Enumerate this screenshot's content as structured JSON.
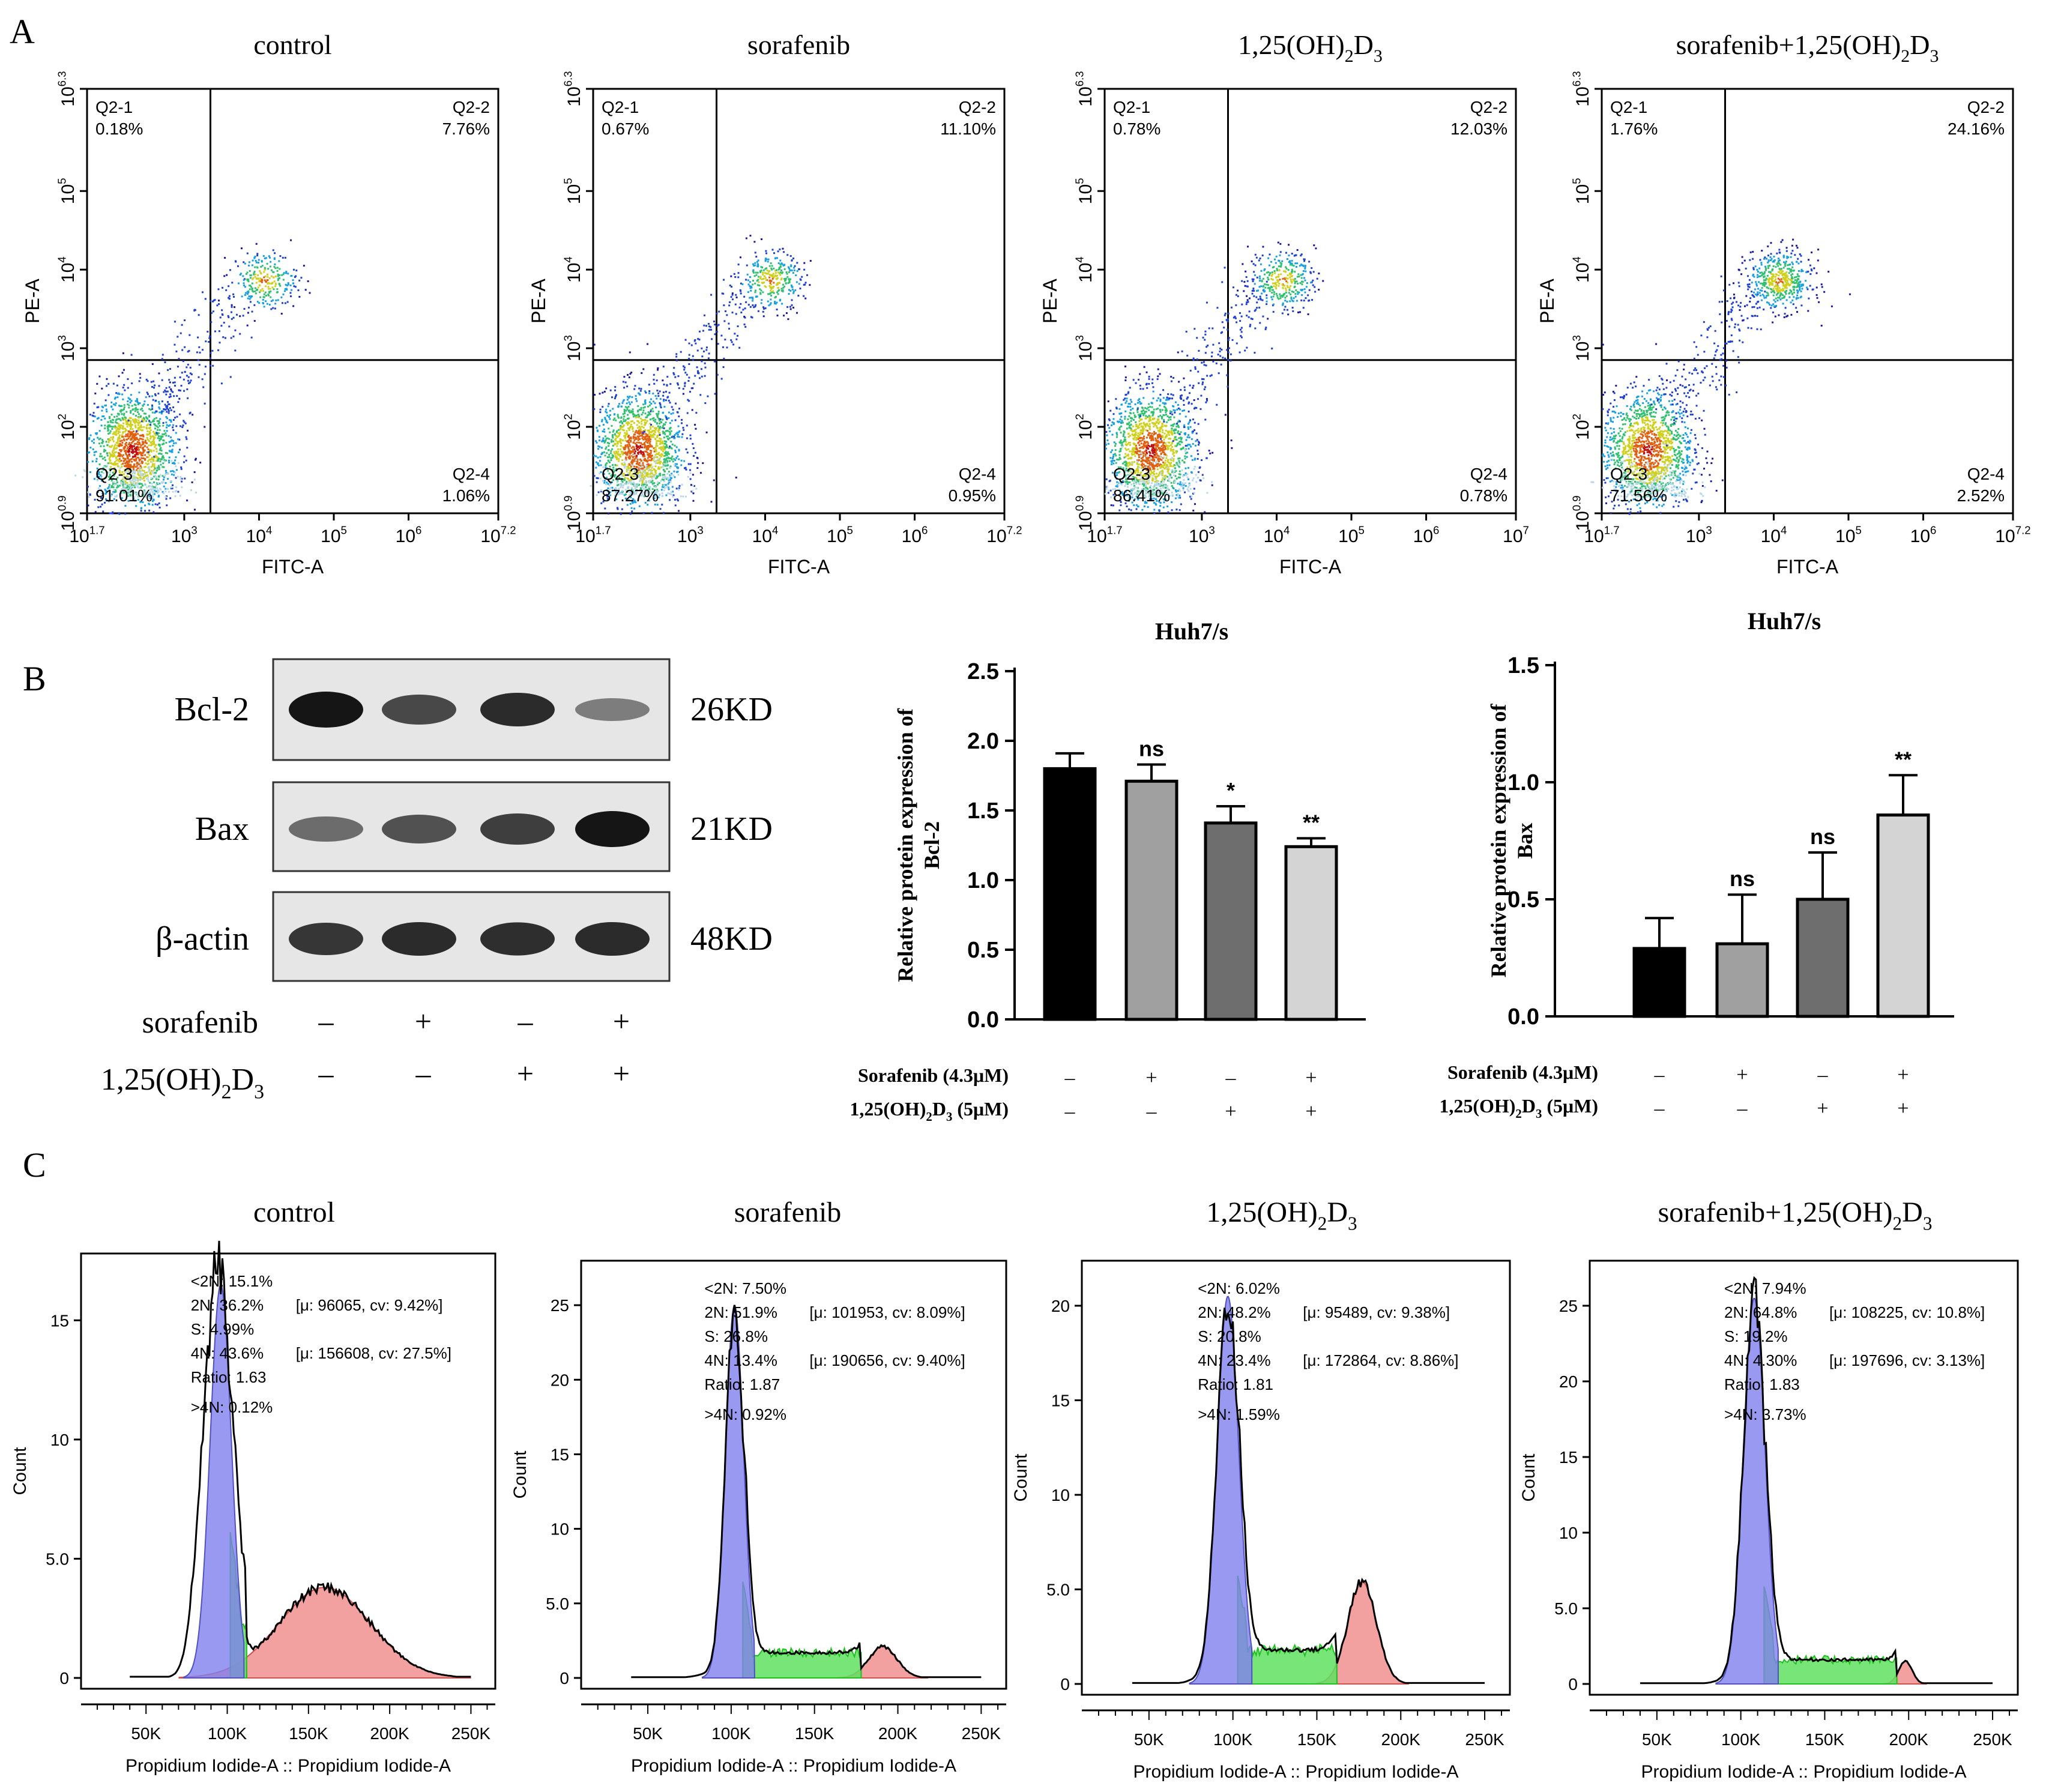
{
  "panel_letters": [
    "A",
    "B",
    "C"
  ],
  "panelA": {
    "x_label": "FITC-A",
    "y_label": "PE-A",
    "x_ticks": [
      [
        "10",
        "1.7"
      ],
      [
        "10",
        "3"
      ],
      [
        "10",
        "4"
      ],
      [
        "10",
        "5"
      ],
      [
        "10",
        "6"
      ],
      [
        "10",
        "7.2"
      ]
    ],
    "x_ticks_third": [
      [
        "10",
        "1.7"
      ],
      [
        "10",
        "3"
      ],
      [
        "10",
        "4"
      ],
      [
        "10",
        "5"
      ],
      [
        "10",
        "6"
      ],
      [
        "10",
        "7"
      ]
    ],
    "y_ticks": [
      [
        "10",
        "0.9"
      ],
      [
        "10",
        "2"
      ],
      [
        "10",
        "3"
      ],
      [
        "10",
        "4"
      ],
      [
        "10",
        "5"
      ],
      [
        "10",
        "6.3"
      ]
    ],
    "quadrant_names": [
      "Q2-1",
      "Q2-2",
      "Q2-3",
      "Q2-4"
    ],
    "plots": [
      {
        "title_main": "control",
        "title_sub": "",
        "title_tail": "",
        "q1": "0.18%",
        "q2": "7.76%",
        "q3": "91.01%",
        "q4": "1.06%"
      },
      {
        "title_main": "sorafenib",
        "title_sub": "",
        "title_tail": "",
        "q1": "0.67%",
        "q2": "11.10%",
        "q3": "87.27%",
        "q4": "0.95%"
      },
      {
        "title_main": "1,25(OH)",
        "title_sub": "2",
        "title_tail": "D",
        "title_sub2": "3",
        "q1": "0.78%",
        "q2": "12.03%",
        "q3": "86.41%",
        "q4": "0.78%"
      },
      {
        "title_main": "sorafenib+1,25(OH)",
        "title_sub": "2",
        "title_tail": "D",
        "title_sub2": "3",
        "q1": "1.76%",
        "q2": "24.16%",
        "q3": "71.56%",
        "q4": "2.52%"
      }
    ]
  },
  "panelB": {
    "blot_labels": [
      "Bcl-2",
      "Bax",
      "β-actin"
    ],
    "blot_sizes": [
      "26KD",
      "21KD",
      "48KD"
    ],
    "treat_labels": {
      "sorafenib": "sorafenib",
      "vd_main": "1,25(OH)",
      "vd_sub": "2",
      "vd_tail": "D",
      "vd_sub2": "3"
    },
    "treat_signs": {
      "sorafenib": [
        "–",
        "+",
        "–",
        "+"
      ],
      "vd": [
        "–",
        "–",
        "+",
        "+"
      ]
    },
    "bar_treat_labels": {
      "sorafenib": "Sorafenib (4.3μM)",
      "vd_main": "1,25(OH)",
      "vd_sub": "2",
      "vd_tail": "D",
      "vd_sub2": "3",
      "vd_dose": " (5μM)"
    }
  },
  "chart_data": [
    {
      "type": "bar",
      "title": "Huh7/s",
      "ylabel_line1": "Relative protein expression of",
      "ylabel_line2": "Bcl-2",
      "ylim": [
        0,
        2.5
      ],
      "yticks": [
        "0.0",
        "0.5",
        "1.0",
        "1.5",
        "2.0",
        "2.5"
      ],
      "ytick_values": [
        0,
        0.5,
        1.0,
        1.5,
        2.0,
        2.5
      ],
      "values": [
        1.8,
        1.71,
        1.41,
        1.24
      ],
      "errors": [
        0.11,
        0.12,
        0.12,
        0.06
      ],
      "significance": [
        "",
        "ns",
        "*",
        "**"
      ],
      "colors": [
        "#000000",
        "#a0a0a0",
        "#6e6e6e",
        "#d4d4d4"
      ],
      "sorafenib_signs": [
        "–",
        "+",
        "–",
        "+"
      ],
      "vd_signs": [
        "–",
        "–",
        "+",
        "+"
      ]
    },
    {
      "type": "bar",
      "title": "Huh7/s",
      "ylabel_line1": "Relative protein expression of",
      "ylabel_line2": "Bax",
      "ylim": [
        0,
        1.5
      ],
      "yticks": [
        "0.0",
        "0.5",
        "1.0",
        "1.5"
      ],
      "ytick_values": [
        0,
        0.5,
        1.0,
        1.5
      ],
      "values": [
        0.29,
        0.31,
        0.5,
        0.86
      ],
      "errors": [
        0.13,
        0.21,
        0.2,
        0.17
      ],
      "significance": [
        "",
        "ns",
        "ns",
        "**"
      ],
      "colors": [
        "#000000",
        "#a0a0a0",
        "#6e6e6e",
        "#d4d4d4"
      ],
      "sorafenib_signs": [
        "–",
        "+",
        "–",
        "+"
      ],
      "vd_signs": [
        "–",
        "–",
        "+",
        "+"
      ]
    }
  ],
  "panelC": {
    "x_label": "Propidium Iodide-A :: Propidium Iodide-A",
    "y_label": "Count",
    "x_ticks": [
      "50K",
      "100K",
      "150K",
      "200K",
      "250K"
    ],
    "x_tick_values": [
      50,
      100,
      150,
      200,
      250
    ],
    "plots": [
      {
        "title_main": "control",
        "title_sub": "",
        "title_tail": "",
        "y_ticks": [
          "0",
          "5.0",
          "10",
          "15"
        ],
        "y_tick_values": [
          0,
          5,
          10,
          15
        ],
        "ymax": 17.5,
        "lt2n": "<2N: 15.1%",
        "n2": "2N: 36.2%",
        "n2_stat": "[μ: 96065, cv: 9.42%]",
        "s": "S: 4.99%",
        "n4": "4N: 43.6%",
        "n4_stat": "[μ: 156608, cv: 27.5%]",
        "ratio": "Ratio: 1.63",
        "gt4n": ">4N: 0.12%",
        "g1_mu": 96,
        "g1_sd": 6.5,
        "g1_h": 16.5,
        "s_level": 2.5,
        "s_end": 112,
        "g2_mu": 160,
        "g2_sd": 28,
        "g2_h": 3.8,
        "peak": 17.2
      },
      {
        "title_main": "sorafenib",
        "title_sub": "",
        "title_tail": "",
        "y_ticks": [
          "0",
          "5.0",
          "10",
          "15",
          "20",
          "25"
        ],
        "y_tick_values": [
          0,
          5,
          10,
          15,
          20,
          25
        ],
        "ymax": 27.5,
        "lt2n": "<2N: 7.50%",
        "n2": "2N: 51.9%",
        "n2_stat": "[μ: 101953, cv: 8.09%]",
        "s": "S: 26.8%",
        "n4": "4N: 13.4%",
        "n4_stat": "[μ: 190656, cv: 9.40%]",
        "ratio": "Ratio: 1.87",
        "gt4n": ">4N: 0.92%",
        "g1_mu": 102,
        "g1_sd": 5.5,
        "g1_h": 25,
        "s_level": 1.7,
        "s_end": 178,
        "g2_mu": 191,
        "g2_sd": 8.5,
        "g2_h": 2.1,
        "peak": 25.5
      },
      {
        "title_main": "1,25(OH)",
        "title_sub": "2",
        "title_tail": "D",
        "title_sub2": "3",
        "y_ticks": [
          "0",
          "5.0",
          "10",
          "15",
          "20"
        ],
        "y_tick_values": [
          0,
          5,
          10,
          15,
          20
        ],
        "ymax": 22,
        "lt2n": "<2N: 6.02%",
        "n2": "2N: 48.2%",
        "n2_stat": "[μ: 95489, cv: 9.38%]",
        "s": "S: 20.8%",
        "n4": "4N: 23.4%",
        "n4_stat": "[μ: 172864, cv: 8.86%]",
        "ratio": "Ratio: 1.81",
        "gt4n": ">4N: 1.59%",
        "g1_mu": 97,
        "g1_sd": 6.5,
        "g1_h": 20.5,
        "s_level": 1.8,
        "s_end": 162,
        "g2_mu": 177,
        "g2_sd": 8.5,
        "g2_h": 5.4,
        "peak": 21
      },
      {
        "title_main": "sorafenib+1,25(OH)",
        "title_sub": "2",
        "title_tail": "D",
        "title_sub2": "3",
        "y_ticks": [
          "0",
          "5.0",
          "10",
          "15",
          "20",
          "25"
        ],
        "y_tick_values": [
          0,
          5,
          10,
          15,
          20,
          25
        ],
        "ymax": 27.5,
        "lt2n": "<2N: 7.94%",
        "n2": "2N: 64.8%",
        "n2_stat": "[μ: 108225, cv: 10.8%]",
        "s": "S: 19.2%",
        "n4": "4N: 4.30%",
        "n4_stat": "[μ: 197696, cv: 3.13%]",
        "ratio": "Ratio: 1.83",
        "gt4n": ">4N: 3.73%",
        "g1_mu": 108,
        "g1_sd": 6.5,
        "g1_h": 25.5,
        "s_level": 1.6,
        "s_end": 193,
        "g2_mu": 198,
        "g2_sd": 4,
        "g2_h": 1.5,
        "peak": 27
      }
    ]
  }
}
